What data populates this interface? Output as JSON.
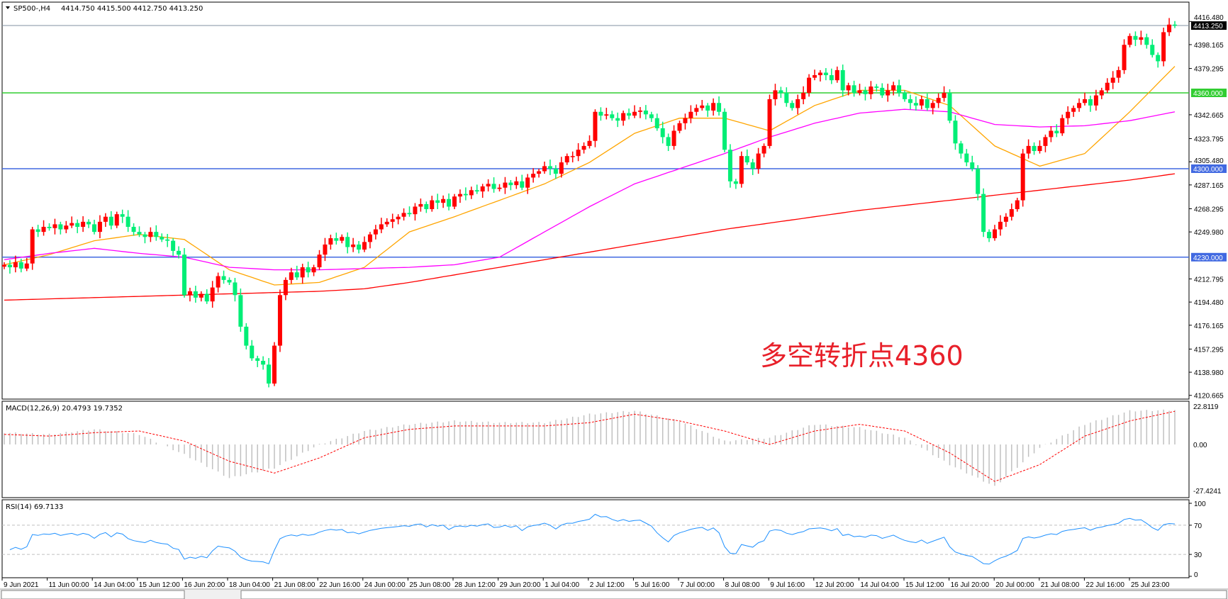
{
  "header": {
    "symbol_title": "SP500-,H4",
    "ohlc": "4414.750 4415.500 4412.750 4413.250"
  },
  "annotation": {
    "text": "多空转折点4360",
    "color": "#e8202a"
  },
  "macd_panel": {
    "title": "MACD(12,26,9) 20.4793 19.7352",
    "ticks": [
      "22.8119",
      "0.00",
      "-27.4241"
    ],
    "tick_values": [
      22.8119,
      0,
      -27.4241
    ]
  },
  "rsi_panel": {
    "title": "RSI(14) 69.7133",
    "ticks": [
      "100",
      "70",
      "30",
      "0"
    ],
    "tick_values": [
      100,
      70,
      30,
      0
    ],
    "levels": [
      70,
      30
    ]
  },
  "colors": {
    "bull": "#ff0000",
    "bear": "#00ee76",
    "ma_fast": "#ffa500",
    "ma_mid": "#ff00ff",
    "ma_slow": "#ff0000",
    "level_green": "#32cd32",
    "level_blue": "#4169e1",
    "macd_hist": "#c0c0c0",
    "macd_signal": "#ff0000",
    "rsi": "#1e90ff"
  },
  "chart_data": {
    "type": "candlestick",
    "timeframe": "H4",
    "price_axis_ticks": [
      "4416.480",
      "4398.165",
      "4379.295",
      "4342.665",
      "4323.795",
      "4305.480",
      "4287.165",
      "4268.295",
      "4249.980",
      "4212.795",
      "4194.480",
      "4176.165",
      "4157.295",
      "4138.980",
      "4120.665"
    ],
    "price_axis_values": [
      4416.48,
      4398.165,
      4379.295,
      4342.665,
      4323.795,
      4305.48,
      4287.165,
      4268.295,
      4249.98,
      4212.795,
      4194.48,
      4176.165,
      4157.295,
      4138.98,
      4120.665
    ],
    "current_price": {
      "label": "4413.250",
      "value": 4413.25
    },
    "levels": [
      {
        "label": "4360.000",
        "value": 4360,
        "color": "#32cd32"
      },
      {
        "label": "4300.000",
        "value": 4300,
        "color": "#4169e1"
      },
      {
        "label": "4230.000",
        "value": 4230,
        "color": "#4169e1"
      }
    ],
    "time_labels": [
      "9 Jun 2021",
      "11 Jun 00:00",
      "14 Jun 04:00",
      "15 Jun 12:00",
      "16 Jun 20:00",
      "18 Jun 04:00",
      "21 Jun 08:00",
      "22 Jun 16:00",
      "24 Jun 00:00",
      "25 Jun 08:00",
      "28 Jun 12:00",
      "29 Jun 20:00",
      "1 Jul 04:00",
      "2 Jul 12:00",
      "5 Jul 16:00",
      "7 Jul 00:00",
      "8 Jul 08:00",
      "9 Jul 16:00",
      "12 Jul 20:00",
      "14 Jul 04:00",
      "15 Jul 12:00",
      "16 Jul 20:00",
      "20 Jul 00:00",
      "21 Jul 08:00",
      "22 Jul 16:00",
      "25 Jul 23:00"
    ],
    "closes": [
      4224,
      4222,
      4226,
      4221,
      4225,
      4252,
      4250,
      4254,
      4253,
      4256,
      4252,
      4255,
      4257,
      4254,
      4258,
      4256,
      4250,
      4258,
      4262,
      4255,
      4264,
      4262,
      4254,
      4250,
      4248,
      4246,
      4250,
      4246,
      4244,
      4243,
      4235,
      4232,
      4200,
      4203,
      4198,
      4201,
      4195,
      4206,
      4215,
      4212,
      4210,
      4200,
      4175,
      4160,
      4150,
      4148,
      4145,
      4130,
      4160,
      4200,
      4212,
      4218,
      4214,
      4222,
      4218,
      4222,
      4232,
      4240,
      4245,
      4243,
      4246,
      4238,
      4240,
      4236,
      4242,
      4248,
      4252,
      4256,
      4258,
      4260,
      4262,
      4265,
      4264,
      4270,
      4272,
      4268,
      4275,
      4273,
      4276,
      4270,
      4278,
      4280,
      4279,
      4283,
      4282,
      4286,
      4288,
      4284,
      4285,
      4289,
      4287,
      4290,
      4285,
      4293,
      4296,
      4298,
      4302,
      4300,
      4296,
      4305,
      4310,
      4310,
      4315,
      4318,
      4322,
      4345,
      4342,
      4343,
      4340,
      4338,
      4344,
      4342,
      4345,
      4346,
      4343,
      4340,
      4332,
      4325,
      4318,
      4330,
      4336,
      4340,
      4345,
      4348,
      4350,
      4346,
      4352,
      4345,
      4315,
      4290,
      4288,
      4310,
      4305,
      4300,
      4312,
      4318,
      4355,
      4362,
      4360,
      4352,
      4348,
      4355,
      4360,
      4372,
      4374,
      4376,
      4374,
      4370,
      4378,
      4362,
      4366,
      4360,
      4362,
      4359,
      4365,
      4364,
      4358,
      4362,
      4366,
      4360,
      4355,
      4352,
      4350,
      4355,
      4348,
      4352,
      4356,
      4360,
      4338,
      4320,
      4312,
      4305,
      4300,
      4280,
      4250,
      4245,
      4252,
      4258,
      4262,
      4268,
      4275,
      4312,
      4318,
      4314,
      4318,
      4325,
      4330,
      4328,
      4340,
      4345,
      4348,
      4352,
      4355,
      4350,
      4358,
      4362,
      4368,
      4372,
      4378,
      4398,
      4405,
      4402,
      4404,
      4398,
      4390,
      4385,
      4408,
      4414,
      4413.25
    ],
    "moving_averages_at_time_labels": {
      "fast": [
        4224,
        4232,
        4243,
        4248,
        4244,
        4220,
        4208,
        4210,
        4222,
        4250,
        4262,
        4275,
        4288,
        4305,
        4328,
        4340,
        4340,
        4330,
        4350,
        4362,
        4362,
        4350,
        4318,
        4302,
        4312,
        4345,
        4381
      ],
      "mid": [
        4228,
        4233,
        4237,
        4233,
        4230,
        4222,
        4220,
        4220,
        4221,
        4222,
        4224,
        4230,
        4250,
        4270,
        4288,
        4300,
        4312,
        4325,
        4336,
        4344,
        4347,
        4345,
        4335,
        4333,
        4334,
        4338,
        4345
      ],
      "slow": [
        4196,
        4197,
        4198,
        4199,
        4200,
        4201,
        4202,
        4203,
        4205,
        4210,
        4216,
        4222,
        4228,
        4234,
        4240,
        4246,
        4252,
        4257,
        4262,
        4267,
        4271,
        4275,
        4279,
        4283,
        4287,
        4291,
        4296
      ]
    },
    "macd_at_time_labels": {
      "main": [
        7,
        6,
        9,
        6,
        -6,
        -20,
        -14,
        0,
        8,
        12,
        14,
        13,
        13,
        18,
        20,
        14,
        2,
        4,
        12,
        10,
        4,
        -12,
        -25,
        -2,
        12,
        20,
        20.4793
      ],
      "signal": [
        6,
        5,
        7,
        8,
        2,
        -10,
        -17,
        -8,
        4,
        9,
        11,
        11,
        11,
        13,
        18,
        14,
        8,
        0,
        8,
        12,
        8,
        -5,
        -22,
        -12,
        5,
        14,
        19.7352
      ]
    }
  }
}
